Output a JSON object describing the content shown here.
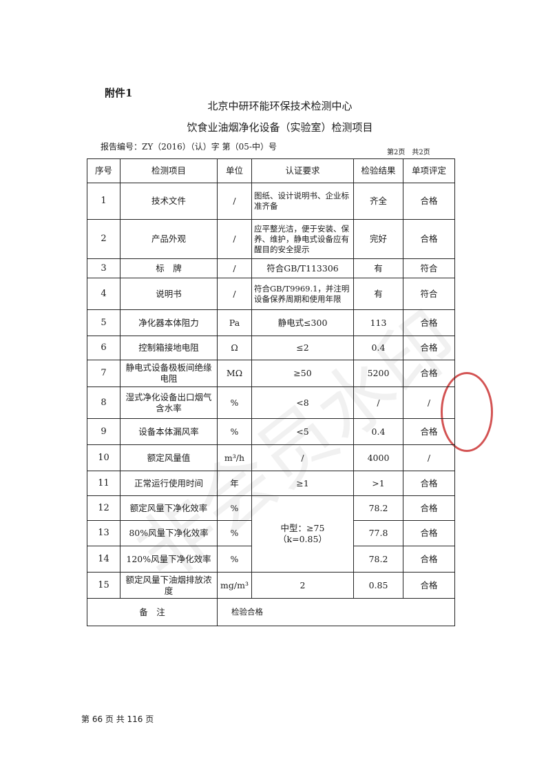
{
  "attachment": "附件1",
  "org": "北京中研环能环保技术检测中心",
  "title": "饮食业油烟净化设备（实验室）检测项目",
  "report_no": "报告编号：ZY（2016）（认）字 第（05-中）号",
  "page_info": "第2页　共2页",
  "headers": [
    "序号",
    "检测项目",
    "单位",
    "认证要求",
    "检验结果",
    "单项评定"
  ],
  "rows": [
    {
      "no": "1",
      "item": "技术文件",
      "unit": "/",
      "req": "图纸、设计说明书、企业标准齐备",
      "result": "齐全",
      "verdict": "合格"
    },
    {
      "no": "2",
      "item": "产品外观",
      "unit": "/",
      "req": "应平整光洁，便于安装、保养、维护，静电式设备应有醒目的安全提示",
      "result": "完好",
      "verdict": "合格"
    },
    {
      "no": "3",
      "item": "标　牌",
      "unit": "/",
      "req": "符合GB/T113306",
      "result": "有",
      "verdict": "符合"
    },
    {
      "no": "4",
      "item": "说明书",
      "unit": "/",
      "req": "符合GB/T9969.1，并注明设备保养周期和使用年限",
      "result": "有",
      "verdict": "符合"
    },
    {
      "no": "5",
      "item": "净化器本体阻力",
      "unit": "Pa",
      "req": "静电式≤300",
      "result": "113",
      "verdict": "合格"
    },
    {
      "no": "6",
      "item": "控制箱接地电阻",
      "unit": "Ω",
      "req": "≤2",
      "result": "0.4",
      "verdict": "合格"
    },
    {
      "no": "7",
      "item": "静电式设备极板间绝缘电阻",
      "unit": "MΩ",
      "req": "≥50",
      "result": "5200",
      "verdict": "合格"
    },
    {
      "no": "8",
      "item": "湿式净化设备出口烟气含水率",
      "unit": "%",
      "req": "<8",
      "result": "/",
      "verdict": "/"
    },
    {
      "no": "9",
      "item": "设备本体漏风率",
      "unit": "%",
      "req": "<5",
      "result": "0.4",
      "verdict": "合格"
    },
    {
      "no": "10",
      "item": "额定风量值",
      "unit": "m³/h",
      "req": "/",
      "result": "4000",
      "verdict": "/"
    },
    {
      "no": "11",
      "item": "正常运行使用时间",
      "unit": "年",
      "req": "≥1",
      "result": ">1",
      "verdict": "合格"
    },
    {
      "no": "12",
      "item": "额定风量下净化效率",
      "unit": "%",
      "req": "",
      "result": "78.2",
      "verdict": "合格"
    },
    {
      "no": "13",
      "item": "80%风量下净化效率",
      "unit": "%",
      "req": "",
      "result": "77.8",
      "verdict": "合格"
    },
    {
      "no": "14",
      "item": "120%风量下净化效率",
      "unit": "%",
      "req": "",
      "result": "78.2",
      "verdict": "合格"
    },
    {
      "no": "15",
      "item": "额定风量下油烟排放浓度",
      "unit": "mg/m³",
      "req": "2",
      "result": "0.85",
      "verdict": "合格"
    }
  ],
  "merged_req": {
    "line1": "中型：≥75",
    "line2": "（k=0.85）"
  },
  "remarks": {
    "label": "备　注",
    "value": "检验合格"
  },
  "watermark": "非会员水印",
  "footer": "第 66 页 共 116 页"
}
